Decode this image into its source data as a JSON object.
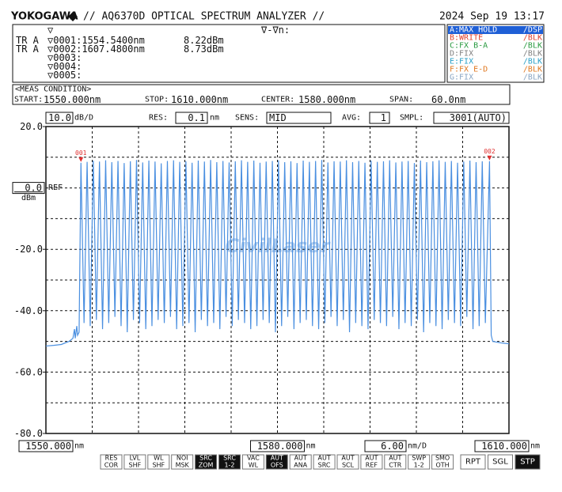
{
  "header": {
    "brand": "YOKOGAWA",
    "title": "// AQ6370D OPTICAL SPECTRUM ANALYZER //",
    "datetime": "2024 Sep 19 13:17"
  },
  "marker_panel": {
    "top_symbol": "▽",
    "delta_label": "∇-∇n:",
    "rows": [
      {
        "trace": "TR A",
        "marker": "▽0001:1554.5400nm",
        "level": "8.22dBm"
      },
      {
        "trace": "TR A",
        "marker": "▽0002:1607.4800nm",
        "level": "8.73dBm"
      },
      {
        "marker": "▽0003:"
      },
      {
        "marker": "▽0004:"
      },
      {
        "marker": "▽0005:"
      }
    ]
  },
  "trace_panel": {
    "highlight": "#1f5fd6",
    "items": [
      {
        "label": "A:MAX HOLD",
        "mode": "/DSP",
        "color": "#ffffff",
        "active": true
      },
      {
        "label": "B:WRITE",
        "mode": "/BLK",
        "color": "#e0402c"
      },
      {
        "label": "C:FX B-A",
        "mode": "/BLK",
        "color": "#2a9a40"
      },
      {
        "label": "D:FIX",
        "mode": "/BLK",
        "color": "#808080"
      },
      {
        "label": "E:FIX",
        "mode": "/BLK",
        "color": "#2aa0c8"
      },
      {
        "label": "F:FX E-D",
        "mode": "/BLK",
        "color": "#e07820"
      },
      {
        "label": "G:FIX",
        "mode": "/BLK",
        "color": "#8aa6c4"
      }
    ]
  },
  "meas": {
    "heading": "<MEAS CONDITION>",
    "items": [
      {
        "label": "START:",
        "value": "1550.000nm"
      },
      {
        "label": "STOP:",
        "value": "1610.000nm"
      },
      {
        "label": "CENTER:",
        "value": "1580.000nm"
      },
      {
        "label": "SPAN:",
        "value": "60.0nm"
      }
    ]
  },
  "settings": {
    "scale": "10.0",
    "scale_unit": "dB/D",
    "res_label": "RES:",
    "res": "0.1",
    "res_unit": "nm",
    "sens_label": "SENS:",
    "sens": "MID",
    "avg_label": "AVG:",
    "avg": "1",
    "smpl_label": "SMPL:",
    "smpl": "3001(AUTO)"
  },
  "buttons": [
    {
      "lines": [
        "RES",
        "COR"
      ]
    },
    {
      "lines": [
        "LVL",
        "SHF"
      ]
    },
    {
      "lines": [
        "WL",
        "SHF"
      ]
    },
    {
      "lines": [
        "NOI",
        "MSK"
      ]
    },
    {
      "lines": [
        "SRC",
        "ZOM"
      ],
      "selected": true
    },
    {
      "lines": [
        "SRC",
        "1-2"
      ],
      "selected": true
    },
    {
      "lines": [
        "VAC",
        "WL"
      ]
    },
    {
      "lines": [
        "AUT",
        "OFS"
      ],
      "selected": true
    },
    {
      "lines": [
        "AUT",
        "ANA"
      ]
    },
    {
      "lines": [
        "AUT",
        "SRC"
      ]
    },
    {
      "lines": [
        "AUT",
        "SCL"
      ]
    },
    {
      "lines": [
        "AUT",
        "REF"
      ]
    },
    {
      "lines": [
        "AUT",
        "CTR"
      ]
    },
    {
      "lines": [
        "SWP",
        "1-2"
      ]
    },
    {
      "lines": [
        "SMO",
        "OTH"
      ]
    },
    {
      "lines": [
        "RPT"
      ]
    },
    {
      "lines": [
        "SGL"
      ]
    },
    {
      "lines": [
        "STP"
      ],
      "selected": true
    }
  ],
  "chart_data": {
    "type": "line",
    "color": "#4a8fe0",
    "grid": true,
    "xlim": [
      1550,
      1610
    ],
    "ylim": [
      -80,
      20
    ],
    "xticks": [
      {
        "value": 1550,
        "label": "1550.000"
      },
      {
        "value": 1580,
        "label": "1580.000"
      },
      {
        "value": 1610,
        "label": "1610.000"
      }
    ],
    "yticks": [
      {
        "value": 20,
        "label": "20.0"
      },
      {
        "value": -20,
        "label": "-20.0"
      },
      {
        "value": -40,
        "label": "-40.0"
      },
      {
        "value": -60,
        "label": "-60.0"
      },
      {
        "value": -80,
        "label": "-80.0"
      }
    ],
    "xgrid": [
      1556,
      1562,
      1568,
      1574,
      1580,
      1586,
      1592,
      1598,
      1604
    ],
    "ygrid": [
      10,
      0,
      -10,
      -20,
      -30,
      -40,
      -50,
      -60,
      -70
    ],
    "ref_level": {
      "value": 0,
      "label": "0.0"
    },
    "ref_text": "REF",
    "y_unit": "dBm",
    "x_unit": "nm",
    "x_div": "6.00",
    "x_div_unit": "nm/D",
    "marker_color": "#e03030",
    "markers": [
      {
        "label": "001",
        "x": 1554.54,
        "y": 8.22
      },
      {
        "label": "002",
        "x": 1607.48,
        "y": 8.73
      }
    ],
    "watermark": "CivilLaser",
    "x": [
      1550,
      1551,
      1552,
      1553,
      1553.5,
      1553.7,
      1553.8,
      1554.0,
      1554.1,
      1554.3,
      1554.54,
      1554.94,
      1555.34,
      1555.74,
      1556.14,
      1556.54,
      1556.94,
      1557.34,
      1557.74,
      1558.14,
      1558.54,
      1558.94,
      1559.34,
      1559.74,
      1560.14,
      1560.54,
      1560.94,
      1561.34,
      1561.74,
      1562.14,
      1562.54,
      1562.94,
      1563.34,
      1563.74,
      1564.14,
      1564.54,
      1564.94,
      1565.34,
      1565.74,
      1566.14,
      1566.54,
      1566.94,
      1567.34,
      1567.74,
      1568.14,
      1568.54,
      1568.94,
      1569.34,
      1569.74,
      1570.14,
      1570.54,
      1570.94,
      1571.34,
      1571.74,
      1572.14,
      1572.54,
      1572.94,
      1573.34,
      1573.74,
      1574.14,
      1574.54,
      1574.94,
      1575.34,
      1575.74,
      1576.14,
      1576.54,
      1576.94,
      1577.34,
      1577.74,
      1578.14,
      1578.54,
      1578.94,
      1579.34,
      1579.74,
      1580.14,
      1580.54,
      1580.94,
      1581.34,
      1581.74,
      1582.14,
      1582.54,
      1582.94,
      1583.34,
      1583.74,
      1584.14,
      1584.54,
      1584.94,
      1585.34,
      1585.74,
      1586.14,
      1586.54,
      1586.94,
      1587.34,
      1587.74,
      1588.14,
      1588.54,
      1588.94,
      1589.34,
      1589.74,
      1590.14,
      1590.54,
      1590.94,
      1591.34,
      1591.74,
      1592.14,
      1592.54,
      1592.94,
      1593.34,
      1593.74,
      1594.14,
      1594.54,
      1594.94,
      1595.34,
      1595.74,
      1596.14,
      1596.54,
      1596.94,
      1597.34,
      1597.74,
      1598.14,
      1598.54,
      1598.94,
      1599.34,
      1599.74,
      1600.14,
      1600.54,
      1600.94,
      1601.34,
      1601.74,
      1602.14,
      1602.54,
      1602.94,
      1603.34,
      1603.74,
      1604.14,
      1604.54,
      1604.94,
      1605.34,
      1605.74,
      1606.14,
      1606.54,
      1606.94,
      1607.48,
      1607.7,
      1607.9,
      1609,
      1610
    ],
    "values": [
      -51.5,
      -51.3,
      -51,
      -50,
      -49,
      -46,
      -49,
      -45,
      -48,
      -47,
      8.22,
      -44,
      8.5,
      -45,
      8.9,
      -43,
      8.6,
      -46,
      9.0,
      -44,
      8.4,
      -42,
      8.8,
      -45,
      8.1,
      -47,
      8.7,
      -43,
      9.1,
      -44,
      8.3,
      -46,
      8.9,
      -45,
      8.6,
      -43,
      8.0,
      -44,
      8.8,
      -42,
      9.0,
      -46,
      8.5,
      -45,
      8.7,
      -44,
      8.2,
      -47,
      8.9,
      -43,
      8.6,
      -45,
      9.1,
      -44,
      8.4,
      -46,
      8.8,
      -42,
      8.3,
      -45,
      8.7,
      -43,
      9.0,
      -44,
      8.5,
      -46,
      8.9,
      -45,
      8.2,
      -43,
      8.6,
      -44,
      8.8,
      -47,
      9.0,
      -45,
      8.4,
      -42,
      8.7,
      -46,
      8.1,
      -44,
      8.9,
      -43,
      8.5,
      -45,
      8.8,
      -46,
      9.1,
      -44,
      8.3,
      -42,
      8.7,
      -45,
      8.6,
      -43,
      9.0,
      -47,
      8.4,
      -44,
      8.8,
      -45,
      8.2,
      -46,
      8.9,
      -43,
      8.5,
      -44,
      8.7,
      -45,
      9.0,
      -42,
      8.3,
      -46,
      8.6,
      -44,
      8.8,
      -45,
      8.1,
      -43,
      8.9,
      -47,
      8.4,
      -44,
      8.7,
      -45,
      9.0,
      -46,
      8.5,
      -43,
      8.8,
      -44,
      8.2,
      -45,
      8.6,
      -42,
      8.9,
      -46,
      8.4,
      -45,
      8.7,
      -44,
      8.73,
      -48,
      -50,
      -50.5,
      -50.8
    ]
  }
}
